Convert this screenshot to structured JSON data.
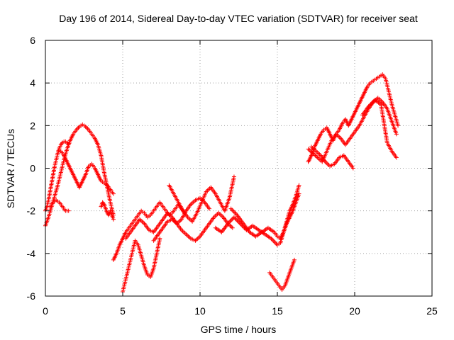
{
  "chart_data": {
    "type": "scatter",
    "title": "Day 196 of 2014, Sidereal Day-to-day VTEC variation (SDTVAR) for receiver seat",
    "xlabel": "GPS time / hours",
    "ylabel": "SDTVAR / TECUs",
    "xlim": [
      0,
      25
    ],
    "ylim": [
      -6,
      6
    ],
    "xticks": [
      0,
      5,
      10,
      15,
      20,
      25
    ],
    "yticks": [
      -6,
      -4,
      -2,
      0,
      2,
      4,
      6
    ],
    "xtick_labels": [
      "0",
      "5",
      "10",
      "15",
      "20",
      "25"
    ],
    "ytick_labels": [
      "-6",
      "-4",
      "-2",
      "0",
      "2",
      "4",
      "6"
    ],
    "grid": true,
    "marker": "plus",
    "color": "#ff0000",
    "series": [
      {
        "name": "trace-1",
        "x": [
          0.0,
          0.2,
          0.4,
          0.6,
          0.8,
          1.0,
          1.2,
          1.4,
          1.6,
          1.8,
          2.0,
          2.2,
          2.4,
          2.6,
          2.8,
          3.0,
          3.2,
          3.4,
          3.6,
          3.8,
          4.0,
          4.2,
          4.4
        ],
        "y": [
          -2.7,
          -2.3,
          -1.8,
          -1.3,
          -0.8,
          -0.2,
          0.4,
          0.9,
          1.3,
          1.6,
          1.8,
          1.95,
          2.05,
          1.95,
          1.8,
          1.6,
          1.4,
          1.1,
          0.6,
          -0.2,
          -0.9,
          -1.6,
          -2.2
        ]
      },
      {
        "name": "trace-2",
        "x": [
          0.0,
          0.1,
          0.2,
          0.3,
          0.4,
          0.5,
          0.6,
          0.7,
          0.8,
          0.9,
          1.0,
          1.1,
          1.2,
          1.3,
          1.4,
          1.5
        ],
        "y": [
          -2.0,
          -1.8,
          -1.5,
          -1.1,
          -0.7,
          -0.3,
          0.1,
          0.4,
          0.7,
          0.95,
          1.1,
          1.2,
          1.25,
          1.25,
          1.2,
          1.1
        ]
      },
      {
        "name": "trace-3",
        "x": [
          1.0,
          1.2,
          1.4,
          1.6,
          1.8,
          2.0,
          2.2,
          2.4,
          2.6,
          2.8,
          3.0,
          3.2,
          3.4,
          3.6,
          3.8,
          4.0,
          4.2,
          4.4
        ],
        "y": [
          0.8,
          0.6,
          0.3,
          0.0,
          -0.3,
          -0.6,
          -0.9,
          -0.6,
          -0.3,
          0.1,
          0.2,
          0.0,
          -0.3,
          -0.6,
          -0.7,
          -0.8,
          -1.0,
          -1.2
        ]
      },
      {
        "name": "trace-4",
        "x": [
          0.3,
          0.5,
          0.7,
          0.9,
          1.1,
          1.3,
          1.5
        ],
        "y": [
          -1.8,
          -1.6,
          -1.5,
          -1.6,
          -1.8,
          -2.0,
          -2.0
        ]
      },
      {
        "name": "trace-5",
        "x": [
          3.6,
          3.7,
          3.8,
          3.9,
          4.0,
          4.1,
          4.2,
          4.3,
          4.4
        ],
        "y": [
          -1.8,
          -1.6,
          -1.7,
          -1.9,
          -2.1,
          -2.2,
          -2.0,
          -2.2,
          -2.4
        ]
      },
      {
        "name": "trace-6",
        "x": [
          4.4,
          4.6,
          4.8,
          5.0,
          5.2,
          5.4,
          5.6,
          5.8,
          6.0,
          6.2,
          6.4,
          6.6,
          6.8,
          7.0,
          7.2,
          7.4,
          7.6,
          7.8,
          8.0,
          8.2,
          8.4,
          8.6,
          8.8,
          9.0
        ],
        "y": [
          -4.3,
          -4.0,
          -3.6,
          -3.3,
          -3.0,
          -2.8,
          -2.6,
          -2.4,
          -2.2,
          -2.0,
          -2.1,
          -2.3,
          -2.2,
          -2.0,
          -1.8,
          -1.6,
          -1.8,
          -2.0,
          -2.2,
          -2.1,
          -1.9,
          -1.7,
          -1.9,
          -2.1
        ]
      },
      {
        "name": "trace-7",
        "x": [
          5.0,
          5.2,
          5.4,
          5.6,
          5.8,
          6.0,
          6.2,
          6.4,
          6.6,
          6.8,
          7.0,
          7.2,
          7.4
        ],
        "y": [
          -5.8,
          -5.2,
          -4.6,
          -4.0,
          -3.4,
          -3.6,
          -4.1,
          -4.6,
          -5.0,
          -5.1,
          -4.7,
          -4.0,
          -3.3
        ]
      },
      {
        "name": "trace-8",
        "x": [
          5.2,
          5.5,
          5.8,
          6.1,
          6.4,
          6.7,
          7.0,
          7.3,
          7.6,
          7.9,
          8.2,
          8.5,
          8.8,
          9.1,
          9.4,
          9.7,
          10.0,
          10.3,
          10.6
        ],
        "y": [
          -3.3,
          -3.0,
          -2.7,
          -2.4,
          -2.6,
          -2.9,
          -3.0,
          -2.7,
          -2.4,
          -2.1,
          -2.3,
          -2.6,
          -2.4,
          -2.0,
          -1.7,
          -1.5,
          -1.4,
          -1.6,
          -1.9
        ]
      },
      {
        "name": "trace-9",
        "x": [
          7.0,
          7.3,
          7.6,
          7.9,
          8.2,
          8.5,
          8.8,
          9.1,
          9.4,
          9.7,
          10.0,
          10.3,
          10.6,
          10.9,
          11.2,
          11.5,
          11.8,
          12.1
        ],
        "y": [
          -3.4,
          -3.1,
          -2.8,
          -2.5,
          -2.4,
          -2.6,
          -2.9,
          -3.1,
          -3.3,
          -3.4,
          -3.2,
          -2.9,
          -2.6,
          -2.3,
          -2.1,
          -2.3,
          -2.6,
          -2.8
        ]
      },
      {
        "name": "trace-10",
        "x": [
          8.0,
          8.3,
          8.6,
          8.9,
          9.2,
          9.5,
          9.8,
          10.1,
          10.4,
          10.7,
          11.0,
          11.3,
          11.6,
          11.9,
          12.2
        ],
        "y": [
          -0.8,
          -1.2,
          -1.6,
          -2.0,
          -2.3,
          -2.5,
          -2.1,
          -1.6,
          -1.1,
          -0.9,
          -1.2,
          -1.6,
          -2.0,
          -1.4,
          -0.4
        ]
      },
      {
        "name": "trace-11",
        "x": [
          11.0,
          11.4,
          11.8,
          12.2,
          12.6,
          13.0,
          13.4,
          13.8,
          14.2,
          14.6,
          15.0,
          15.2,
          15.4,
          15.6,
          15.8,
          16.0,
          16.2,
          16.4
        ],
        "y": [
          -2.8,
          -3.0,
          -2.6,
          -2.3,
          -2.6,
          -2.9,
          -2.7,
          -2.9,
          -3.1,
          -3.3,
          -3.6,
          -3.5,
          -3.0,
          -2.6,
          -2.3,
          -2.0,
          -1.6,
          -1.2
        ]
      },
      {
        "name": "trace-12",
        "x": [
          12.0,
          12.4,
          12.8,
          13.2,
          13.6,
          14.0,
          14.4,
          14.8,
          15.0,
          15.2,
          15.4,
          15.6,
          15.8,
          16.0,
          16.2,
          16.4
        ],
        "y": [
          -1.9,
          -2.2,
          -2.6,
          -3.0,
          -3.2,
          -3.0,
          -2.8,
          -3.0,
          -3.2,
          -3.3,
          -3.0,
          -2.5,
          -2.0,
          -1.7,
          -1.3,
          -0.8
        ]
      },
      {
        "name": "trace-13",
        "x": [
          14.5,
          14.7,
          14.9,
          15.1,
          15.3,
          15.5,
          15.7,
          15.9,
          16.1
        ],
        "y": [
          -4.9,
          -5.1,
          -5.3,
          -5.5,
          -5.7,
          -5.5,
          -5.1,
          -4.7,
          -4.3
        ]
      },
      {
        "name": "trace-14",
        "x": [
          17.0,
          17.2,
          17.4,
          17.6,
          17.8,
          18.0,
          18.2,
          18.4,
          18.6,
          18.8,
          19.0,
          19.2,
          19.4,
          19.6,
          19.8,
          20.0,
          20.2,
          20.4,
          20.6,
          20.8,
          21.0,
          21.2,
          21.4,
          21.6,
          21.8,
          22.0,
          22.2,
          22.4,
          22.6,
          22.8
        ],
        "y": [
          0.3,
          0.6,
          1.0,
          1.3,
          1.6,
          1.8,
          1.9,
          1.6,
          1.3,
          1.6,
          1.8,
          2.1,
          2.3,
          2.0,
          2.3,
          2.6,
          2.9,
          3.2,
          3.5,
          3.8,
          4.0,
          4.1,
          4.2,
          4.3,
          4.4,
          4.2,
          3.6,
          3.0,
          2.5,
          2.0
        ]
      },
      {
        "name": "trace-15",
        "x": [
          17.0,
          17.3,
          17.6,
          17.9,
          18.2,
          18.5,
          18.8,
          19.1,
          19.4,
          19.7,
          20.0,
          20.3,
          20.6,
          20.9,
          21.2,
          21.5,
          21.8,
          22.1,
          22.4,
          22.7
        ],
        "y": [
          0.9,
          0.7,
          0.5,
          0.3,
          0.8,
          1.3,
          1.6,
          1.4,
          1.1,
          1.4,
          1.7,
          2.0,
          2.4,
          2.8,
          3.1,
          3.3,
          3.1,
          2.8,
          2.2,
          1.6
        ]
      },
      {
        "name": "trace-16",
        "x": [
          17.2,
          17.5,
          17.8,
          18.1,
          18.4,
          18.7,
          19.0,
          19.3,
          19.6,
          19.9
        ],
        "y": [
          1.0,
          0.8,
          0.6,
          0.3,
          0.1,
          0.2,
          0.5,
          0.6,
          0.3,
          0.0
        ]
      },
      {
        "name": "trace-17",
        "x": [
          20.5,
          20.9,
          21.3,
          21.7,
          22.1,
          22.4,
          22.7
        ],
        "y": [
          2.5,
          2.9,
          3.2,
          3.0,
          1.2,
          0.8,
          0.5
        ]
      }
    ]
  }
}
